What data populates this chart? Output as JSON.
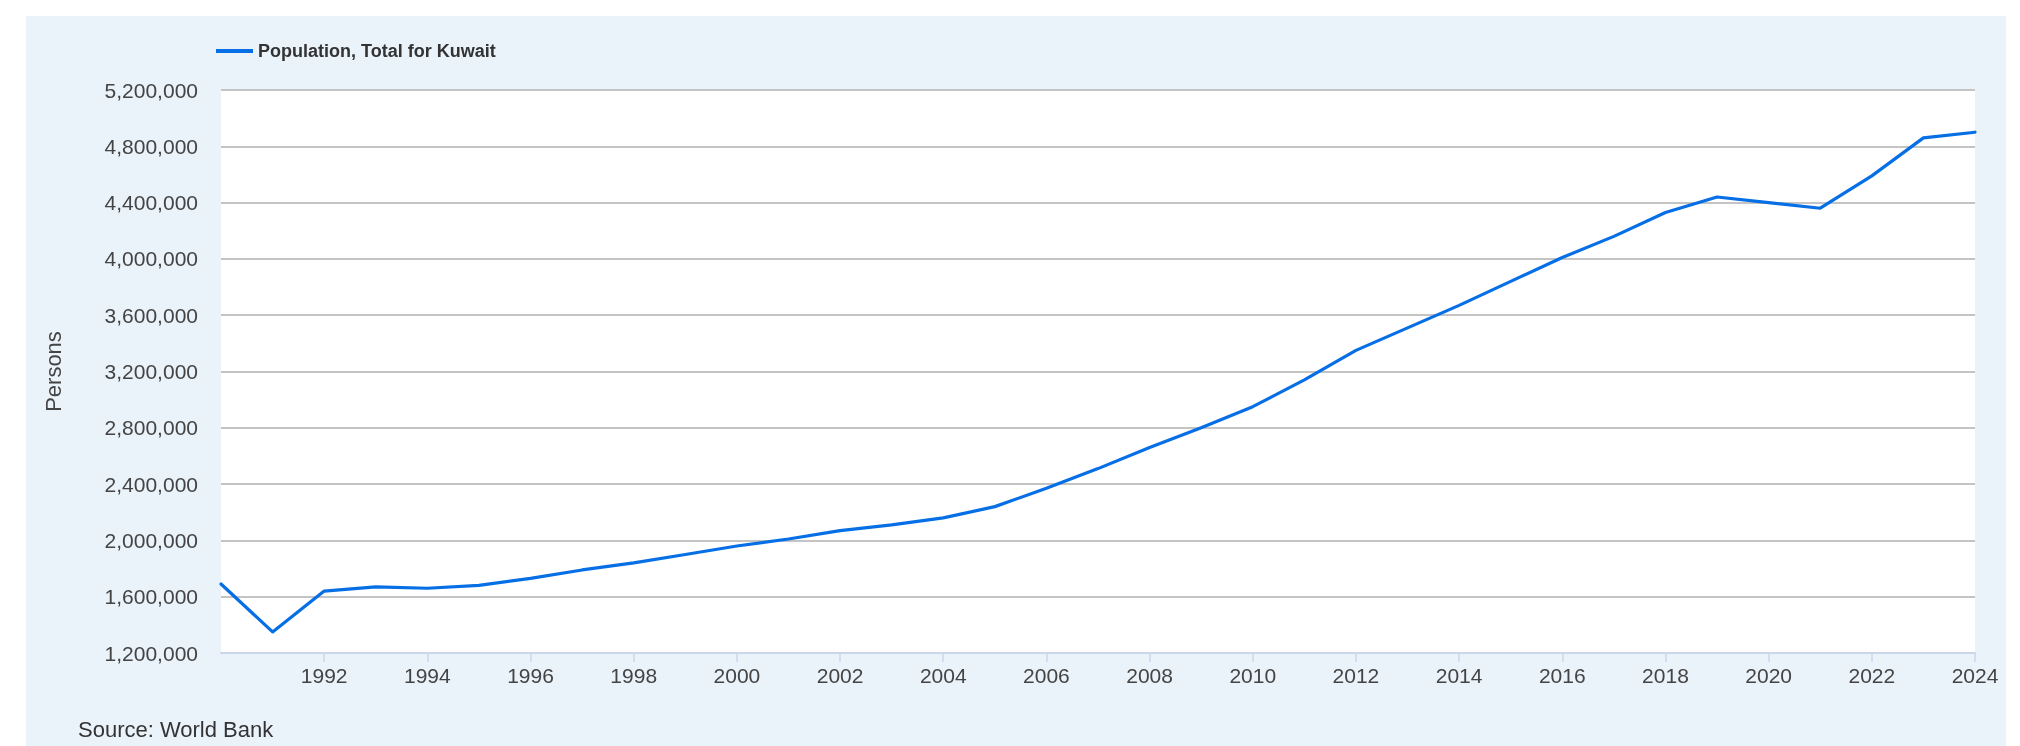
{
  "chart_data": {
    "type": "line",
    "ylabel": "Persons",
    "annotations": [
      "Source: World Bank"
    ],
    "x": [
      1990,
      1991,
      1992,
      1993,
      1994,
      1995,
      1996,
      1997,
      1998,
      1999,
      2000,
      2001,
      2002,
      2003,
      2004,
      2005,
      2006,
      2007,
      2008,
      2009,
      2010,
      2011,
      2012,
      2013,
      2014,
      2015,
      2016,
      2017,
      2018,
      2019,
      2020,
      2021,
      2022,
      2023,
      2024
    ],
    "series": [
      {
        "name": "Population, Total for Kuwait",
        "color": "#066fe6",
        "values": [
          1690000,
          1350000,
          1640000,
          1670000,
          1660000,
          1680000,
          1730000,
          1790000,
          1840000,
          1900000,
          1960000,
          2010000,
          2070000,
          2110000,
          2160000,
          2240000,
          2370000,
          2510000,
          2660000,
          2800000,
          2950000,
          3140000,
          3350000,
          3510000,
          3670000,
          3840000,
          4010000,
          4160000,
          4330000,
          4440000,
          4400000,
          4360000,
          4590000,
          4860000,
          4900000
        ]
      }
    ],
    "xlim": [
      1990,
      2024
    ],
    "xticks": [
      1992,
      1994,
      1996,
      1998,
      2000,
      2002,
      2004,
      2006,
      2008,
      2010,
      2012,
      2014,
      2016,
      2018,
      2020,
      2022,
      2024
    ],
    "ylim": [
      1200000,
      5200000
    ],
    "yticks": [
      {
        "value": 1200000,
        "label": "1,200,000"
      },
      {
        "value": 1600000,
        "label": "1,600,000"
      },
      {
        "value": 2000000,
        "label": "2,000,000"
      },
      {
        "value": 2400000,
        "label": "2,400,000"
      },
      {
        "value": 2800000,
        "label": "2,800,000"
      },
      {
        "value": 3200000,
        "label": "3,200,000"
      },
      {
        "value": 3600000,
        "label": "3,600,000"
      },
      {
        "value": 4000000,
        "label": "4,000,000"
      },
      {
        "value": 4400000,
        "label": "4,400,000"
      },
      {
        "value": 4800000,
        "label": "4,800,000"
      },
      {
        "value": 5200000,
        "label": "5,200,000"
      }
    ],
    "grid": "y",
    "legend": "top left",
    "marker": "none",
    "line_style": "solid"
  }
}
